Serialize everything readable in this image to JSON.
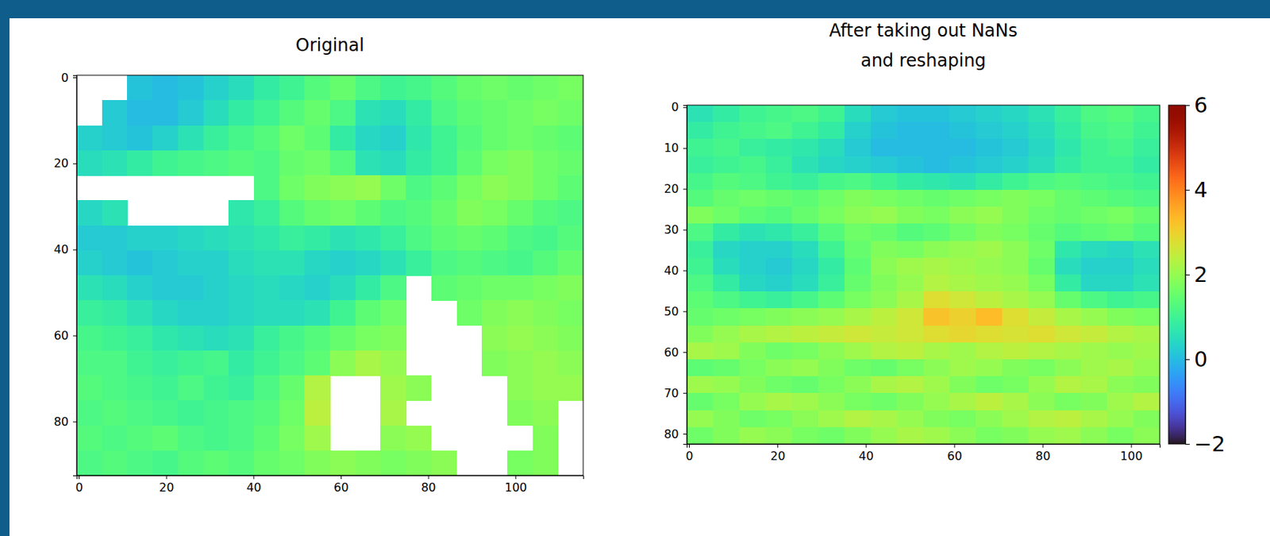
{
  "chart_data": [
    {
      "type": "heatmap",
      "title": "Original",
      "color": "turbo",
      "zlim": [
        -2,
        6
      ],
      "xlim": [
        -0.5,
        115.5
      ],
      "ylim": [
        92.5,
        -0.5
      ],
      "xticks": [
        0,
        20,
        40,
        60,
        80,
        100
      ],
      "yticks": [
        0,
        20,
        40,
        60,
        80
      ],
      "z": [
        [
          null,
          null,
          0.1,
          0.0,
          0.1,
          0.3,
          0.5,
          0.8,
          1.0,
          1.3,
          1.5,
          1.2,
          1.0,
          1.1,
          1.3,
          1.5,
          1.6,
          1.5,
          1.6,
          1.7
        ],
        [
          null,
          0.2,
          0.0,
          0.0,
          0.2,
          0.5,
          0.8,
          1.0,
          1.3,
          1.5,
          1.2,
          0.6,
          0.5,
          0.8,
          1.2,
          1.4,
          1.5,
          1.6,
          1.7,
          1.6
        ],
        [
          0.3,
          0.2,
          0.1,
          0.3,
          0.6,
          0.9,
          1.1,
          1.3,
          1.6,
          1.4,
          0.8,
          0.4,
          0.3,
          0.7,
          1.0,
          1.3,
          1.5,
          1.6,
          1.5,
          1.4
        ],
        [
          0.5,
          0.6,
          0.8,
          1.0,
          1.1,
          1.2,
          1.3,
          1.2,
          1.5,
          1.6,
          1.3,
          0.6,
          0.5,
          0.8,
          1.0,
          1.4,
          1.7,
          1.8,
          1.6,
          1.5
        ],
        [
          null,
          null,
          null,
          null,
          null,
          null,
          null,
          1.2,
          1.6,
          1.8,
          1.9,
          2.0,
          1.6,
          1.2,
          1.4,
          1.7,
          1.9,
          1.8,
          1.6,
          1.4
        ],
        [
          0.4,
          0.6,
          null,
          null,
          null,
          null,
          0.7,
          0.9,
          1.3,
          1.5,
          1.6,
          1.4,
          1.2,
          1.3,
          1.5,
          1.8,
          1.7,
          1.5,
          1.3,
          1.2
        ],
        [
          0.2,
          0.2,
          0.3,
          0.3,
          0.4,
          0.5,
          0.6,
          0.7,
          0.9,
          0.8,
          0.6,
          0.7,
          0.9,
          1.2,
          1.4,
          1.5,
          1.4,
          1.2,
          1.1,
          1.3
        ],
        [
          0.3,
          0.2,
          0.1,
          0.2,
          0.3,
          0.3,
          0.5,
          0.6,
          0.6,
          0.4,
          0.3,
          0.4,
          0.6,
          0.9,
          1.2,
          1.3,
          1.2,
          1.1,
          1.3,
          1.5
        ],
        [
          0.6,
          0.5,
          0.3,
          0.2,
          0.2,
          0.3,
          0.4,
          0.5,
          0.4,
          0.3,
          0.5,
          0.8,
          1.2,
          null,
          1.4,
          1.5,
          1.6,
          1.6,
          1.7,
          1.8
        ],
        [
          0.9,
          0.8,
          0.6,
          0.4,
          0.3,
          0.3,
          0.4,
          0.5,
          0.5,
          0.6,
          1.0,
          1.4,
          1.6,
          null,
          null,
          1.6,
          1.8,
          1.9,
          1.8,
          1.7
        ],
        [
          1.1,
          1.0,
          0.9,
          0.7,
          0.6,
          0.5,
          0.6,
          0.9,
          1.1,
          1.3,
          1.5,
          1.7,
          1.8,
          null,
          null,
          null,
          1.9,
          2.0,
          1.9,
          1.8
        ],
        [
          1.2,
          1.2,
          1.0,
          0.9,
          1.0,
          1.1,
          0.8,
          1.0,
          1.2,
          1.4,
          1.9,
          2.2,
          2.0,
          null,
          null,
          null,
          1.8,
          1.9,
          2.0,
          1.9
        ],
        [
          1.3,
          1.2,
          1.1,
          1.0,
          1.2,
          1.0,
          0.9,
          1.2,
          1.5,
          2.3,
          null,
          null,
          2.1,
          1.9,
          null,
          null,
          null,
          1.9,
          2.0,
          2.0
        ],
        [
          1.2,
          1.3,
          1.2,
          1.1,
          1.0,
          1.1,
          1.2,
          1.3,
          1.6,
          2.4,
          null,
          null,
          2.2,
          null,
          null,
          null,
          null,
          1.8,
          1.9,
          null
        ],
        [
          1.3,
          1.2,
          1.3,
          1.4,
          1.2,
          1.1,
          1.2,
          1.4,
          1.7,
          2.1,
          null,
          null,
          1.9,
          2.0,
          null,
          null,
          null,
          null,
          1.8,
          null
        ],
        [
          1.2,
          1.3,
          1.2,
          1.1,
          1.3,
          1.4,
          1.3,
          1.5,
          1.6,
          1.8,
          1.9,
          1.8,
          1.7,
          1.8,
          1.9,
          null,
          null,
          1.7,
          1.8,
          null
        ]
      ]
    },
    {
      "type": "heatmap",
      "title": "After taking out NaNs\nand reshaping",
      "color": "turbo",
      "zlim": [
        -2,
        6
      ],
      "colorbar_ticks": [
        {
          "value": -2,
          "label": "−2"
        },
        0,
        2,
        4,
        6
      ],
      "xlim": [
        -0.5,
        106.5
      ],
      "ylim": [
        82.5,
        -0.5
      ],
      "xticks": [
        0,
        20,
        40,
        60,
        80,
        100
      ],
      "yticks": [
        0,
        10,
        20,
        30,
        40,
        50,
        60,
        70,
        80
      ],
      "z": [
        [
          0.6,
          0.8,
          1.0,
          1.1,
          1.2,
          1.0,
          0.5,
          0.2,
          0.1,
          0.1,
          0.2,
          0.3,
          0.4,
          0.6,
          0.9,
          1.2,
          1.3,
          1.1
        ],
        [
          0.8,
          1.0,
          1.1,
          1.2,
          1.0,
          0.8,
          0.3,
          0.1,
          0.0,
          0.0,
          0.1,
          0.2,
          0.3,
          0.5,
          0.8,
          1.1,
          1.2,
          1.0
        ],
        [
          1.0,
          1.1,
          0.9,
          0.8,
          0.7,
          0.5,
          0.2,
          0.0,
          0.0,
          0.0,
          0.0,
          0.1,
          0.2,
          0.4,
          0.7,
          1.0,
          1.1,
          0.9
        ],
        [
          0.9,
          1.0,
          1.1,
          0.9,
          0.6,
          0.4,
          0.3,
          0.2,
          0.1,
          0.0,
          0.1,
          0.2,
          0.3,
          0.5,
          0.8,
          1.0,
          1.0,
          0.8
        ],
        [
          1.1,
          1.3,
          1.2,
          1.0,
          0.9,
          1.1,
          1.2,
          1.0,
          0.8,
          0.7,
          0.6,
          0.8,
          1.0,
          1.2,
          1.3,
          1.2,
          1.1,
          1.0
        ],
        [
          1.3,
          1.5,
          1.6,
          1.5,
          1.4,
          1.6,
          1.8,
          1.7,
          1.6,
          1.5,
          1.6,
          1.7,
          1.8,
          1.7,
          1.5,
          1.4,
          1.3,
          1.2
        ],
        [
          1.8,
          1.6,
          1.4,
          1.3,
          1.5,
          1.7,
          1.9,
          2.0,
          1.8,
          1.7,
          1.9,
          2.0,
          1.8,
          1.6,
          1.5,
          1.6,
          1.7,
          1.5
        ],
        [
          1.2,
          0.8,
          0.6,
          0.7,
          0.9,
          1.3,
          1.6,
          1.5,
          1.3,
          1.4,
          1.6,
          1.8,
          1.7,
          1.5,
          1.3,
          1.4,
          1.5,
          1.3
        ],
        [
          0.9,
          0.4,
          0.3,
          0.3,
          0.5,
          1.0,
          1.5,
          1.8,
          1.7,
          1.9,
          2.0,
          2.1,
          1.9,
          1.6,
          0.7,
          0.5,
          0.4,
          0.6
        ],
        [
          1.0,
          0.5,
          0.3,
          0.2,
          0.4,
          0.8,
          1.4,
          1.9,
          2.1,
          2.2,
          2.1,
          2.0,
          1.9,
          1.5,
          0.5,
          0.3,
          0.3,
          0.5
        ],
        [
          1.2,
          0.8,
          0.4,
          0.3,
          0.5,
          0.9,
          1.5,
          1.8,
          2.0,
          2.3,
          2.2,
          2.1,
          2.0,
          1.7,
          0.8,
          0.4,
          0.4,
          0.6
        ],
        [
          1.4,
          1.2,
          1.0,
          0.9,
          1.1,
          1.4,
          1.7,
          1.9,
          2.2,
          2.8,
          2.6,
          2.4,
          2.2,
          2.0,
          1.5,
          1.2,
          1.0,
          1.1
        ],
        [
          1.5,
          1.6,
          1.7,
          1.8,
          1.9,
          2.0,
          2.2,
          2.4,
          2.6,
          3.2,
          3.0,
          3.3,
          2.8,
          2.5,
          2.2,
          2.0,
          1.8,
          1.7
        ],
        [
          1.8,
          2.0,
          2.2,
          2.3,
          2.4,
          2.5,
          2.6,
          2.5,
          2.6,
          2.8,
          2.9,
          2.8,
          2.7,
          2.8,
          2.6,
          2.5,
          2.3,
          2.2
        ],
        [
          2.2,
          2.1,
          1.8,
          1.6,
          1.7,
          1.9,
          2.1,
          2.3,
          2.4,
          2.2,
          2.1,
          2.3,
          2.4,
          2.3,
          2.2,
          2.1,
          2.0,
          2.1
        ],
        [
          1.4,
          1.5,
          1.7,
          1.9,
          2.0,
          1.8,
          1.6,
          1.5,
          1.7,
          1.9,
          2.1,
          2.0,
          1.8,
          1.7,
          1.9,
          2.1,
          2.2,
          2.0
        ],
        [
          2.1,
          2.0,
          1.8,
          1.6,
          1.5,
          1.7,
          1.9,
          2.2,
          2.3,
          2.1,
          1.8,
          1.6,
          1.7,
          2.0,
          2.3,
          2.2,
          1.9,
          1.8
        ],
        [
          1.5,
          1.7,
          2.0,
          2.2,
          2.1,
          1.9,
          1.7,
          1.6,
          1.8,
          2.0,
          2.2,
          2.4,
          2.2,
          1.9,
          1.7,
          1.8,
          2.1,
          2.3
        ],
        [
          2.0,
          1.8,
          1.6,
          1.7,
          1.9,
          2.1,
          2.3,
          2.2,
          2.0,
          1.8,
          1.7,
          1.9,
          2.1,
          2.3,
          2.4,
          2.2,
          2.0,
          1.8
        ],
        [
          1.6,
          1.8,
          2.0,
          1.9,
          1.7,
          1.6,
          1.8,
          2.0,
          2.2,
          2.1,
          1.9,
          1.7,
          1.8,
          2.0,
          2.1,
          1.9,
          1.7,
          1.9
        ]
      ]
    }
  ]
}
